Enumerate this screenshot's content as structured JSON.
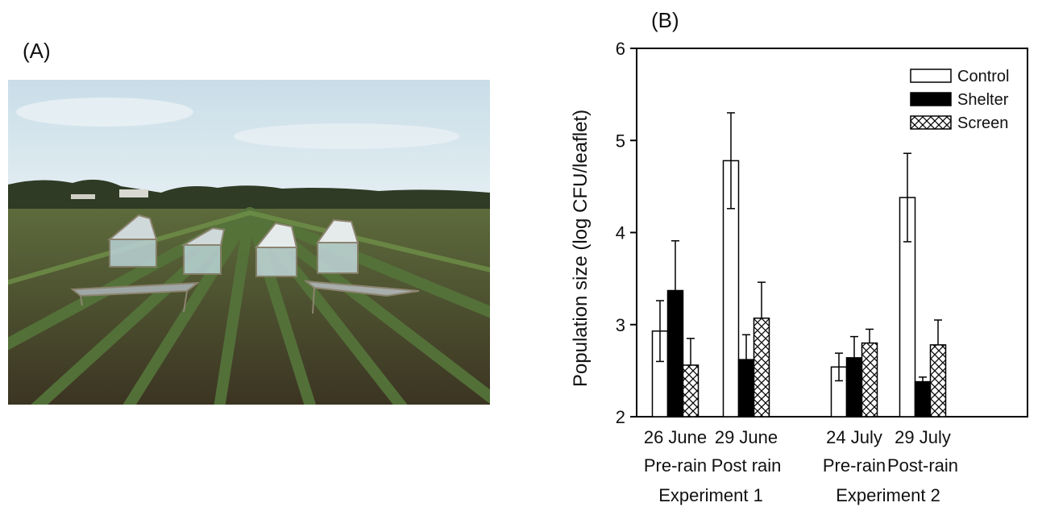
{
  "panel_a": {
    "label": "(A)"
  },
  "panel_b": {
    "label": "(B)"
  },
  "chart_data": {
    "type": "bar",
    "title": "",
    "ylabel": "Population size (log CFU/leaflet)",
    "xlabel": "",
    "ylim": [
      2,
      6
    ],
    "yticks": [
      2,
      3,
      4,
      5,
      6
    ],
    "grid": false,
    "legend_position": "top-right",
    "groups": [
      {
        "date": "26 June",
        "condition": "Pre-rain",
        "experiment": "Experiment 1"
      },
      {
        "date": "29 June",
        "condition": "Post rain",
        "experiment": "Experiment 1"
      },
      {
        "date": "24 July",
        "condition": "Pre-rain",
        "experiment": "Experiment 2"
      },
      {
        "date": "29 July",
        "condition": "Post-rain",
        "experiment": "Experiment 2"
      }
    ],
    "experiments": [
      "Experiment 1",
      "Experiment 2"
    ],
    "series": [
      {
        "name": "Control",
        "fill": "#ffffff",
        "pattern": "none",
        "values": [
          2.93,
          4.78,
          2.54,
          4.38
        ],
        "errors": [
          0.33,
          0.52,
          0.15,
          0.48
        ]
      },
      {
        "name": "Shelter",
        "fill": "#000000",
        "pattern": "none",
        "values": [
          3.37,
          2.62,
          2.64,
          2.38
        ],
        "errors": [
          0.54,
          0.27,
          0.23,
          0.05
        ]
      },
      {
        "name": "Screen",
        "fill": "#ffffff",
        "pattern": "crosshatch",
        "values": [
          2.56,
          3.07,
          2.8,
          2.78
        ],
        "errors": [
          0.29,
          0.39,
          0.15,
          0.27
        ]
      }
    ]
  }
}
